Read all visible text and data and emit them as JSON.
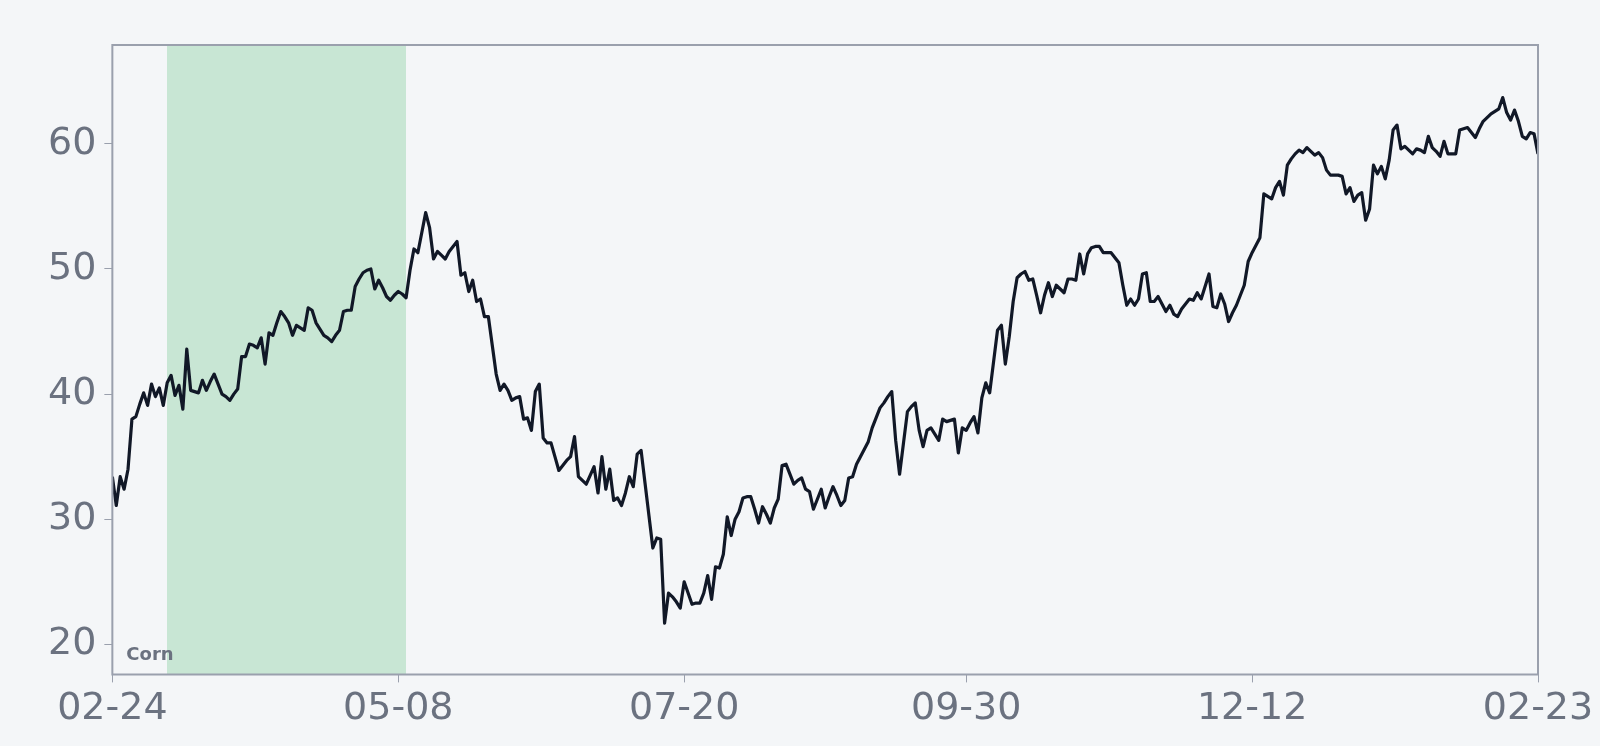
{
  "chart_data": {
    "type": "line",
    "annotations": [
      "Corn"
    ],
    "categories": [
      "02-24",
      null,
      null,
      null,
      null,
      null,
      null,
      null,
      null,
      null,
      null,
      null,
      null,
      null,
      null,
      null,
      null,
      null,
      null,
      null,
      null,
      null,
      null,
      null,
      null,
      null,
      null,
      null,
      null,
      null,
      null,
      null,
      null,
      null,
      null,
      null,
      null,
      null,
      null,
      null,
      null,
      null,
      null,
      null,
      null,
      null,
      null,
      null,
      null,
      null,
      null,
      null,
      null,
      null,
      null,
      null,
      null,
      null,
      null,
      null,
      null,
      null,
      null,
      null,
      null,
      null,
      null,
      null,
      null,
      null,
      null,
      null,
      null,
      "05-08",
      null,
      null,
      null,
      null,
      null,
      null,
      null,
      null,
      null,
      null,
      null,
      null,
      null,
      null,
      null,
      null,
      null,
      null,
      null,
      null,
      null,
      null,
      null,
      null,
      null,
      null,
      null,
      null,
      null,
      null,
      null,
      null,
      null,
      null,
      null,
      null,
      null,
      null,
      null,
      null,
      null,
      null,
      null,
      null,
      null,
      null,
      null,
      null,
      null,
      null,
      null,
      null,
      null,
      null,
      null,
      null,
      null,
      null,
      null,
      null,
      null,
      null,
      null,
      null,
      null,
      null,
      null,
      null,
      null,
      null,
      null,
      null,
      "07-20",
      null,
      null,
      null,
      null,
      null,
      null,
      null,
      null,
      null,
      null,
      null,
      null,
      null,
      null,
      null,
      null,
      null,
      null,
      null,
      null,
      null,
      null,
      null,
      null,
      null,
      null,
      null,
      null,
      null,
      null,
      null,
      null,
      null,
      null,
      null,
      null,
      null,
      null,
      null,
      null,
      null,
      null,
      null,
      null,
      null,
      null,
      null,
      null,
      null,
      null,
      null,
      null,
      null,
      null,
      null,
      null,
      null,
      null,
      null,
      null,
      null,
      null,
      null,
      null,
      null,
      null,
      null,
      null,
      null,
      null,
      null,
      "09-30",
      null,
      null,
      null,
      null,
      null,
      null,
      null,
      null,
      null,
      null,
      null,
      null,
      null,
      null,
      null,
      null,
      null,
      null,
      null,
      null,
      null,
      null,
      null,
      null,
      null,
      null,
      null,
      null,
      null,
      null,
      null,
      null,
      null,
      null,
      null,
      null,
      null,
      null,
      null,
      null,
      null,
      null,
      null,
      null,
      null,
      null,
      null,
      null,
      null,
      null,
      null,
      null,
      null,
      null,
      null,
      null,
      null,
      null,
      null,
      null,
      null,
      null,
      null,
      null,
      null,
      null,
      null,
      null,
      null,
      null,
      null,
      null,
      "12-12",
      null,
      null,
      null,
      null,
      null,
      null,
      null,
      null,
      null,
      null,
      null,
      null,
      null,
      null,
      null,
      null,
      null,
      null,
      null,
      null,
      null,
      null,
      null,
      null,
      null,
      null,
      null,
      null,
      null,
      null,
      null,
      null,
      null,
      null,
      null,
      null,
      null,
      null,
      null,
      null,
      null,
      null,
      null,
      null,
      null,
      null,
      null,
      null,
      null,
      null,
      null,
      null,
      null,
      null,
      null,
      null,
      null,
      null,
      null,
      null,
      null,
      null,
      null,
      null,
      null,
      null,
      null,
      null,
      null,
      null,
      null,
      null,
      "02-23"
    ],
    "series": [
      {
        "color": "#111827",
        "values": [
          33.4,
          31.1,
          33.4,
          32.4,
          34.0,
          38.0,
          38.2,
          39.2,
          40.1,
          39.1,
          40.8,
          39.8,
          40.5,
          39.1,
          40.9,
          41.5,
          39.9,
          40.7,
          38.8,
          43.6,
          40.3,
          40.2,
          40.1,
          41.1,
          40.3,
          41.0,
          41.6,
          40.8,
          40.0,
          39.8,
          39.5,
          40.0,
          40.4,
          43.0,
          43.0,
          44.0,
          43.9,
          43.7,
          44.5,
          42.4,
          44.9,
          44.7,
          45.7,
          46.6,
          46.2,
          45.7,
          44.7,
          45.5,
          45.3,
          45.1,
          46.9,
          46.7,
          45.7,
          45.2,
          44.7,
          44.5,
          44.2,
          44.7,
          45.1,
          46.6,
          46.7,
          46.7,
          48.6,
          49.2,
          49.7,
          49.9,
          50.0,
          48.4,
          49.1,
          48.5,
          47.8,
          47.5,
          47.9,
          48.2,
          48.0,
          47.7,
          49.9,
          51.6,
          51.3,
          52.9,
          54.5,
          53.3,
          50.8,
          51.4,
          51.1,
          50.8,
          51.4,
          51.8,
          52.2,
          49.5,
          49.7,
          48.2,
          49.1,
          47.4,
          47.6,
          46.2,
          46.2,
          43.9,
          41.6,
          40.3,
          40.8,
          40.3,
          39.5,
          39.7,
          39.8,
          38.0,
          38.1,
          37.1,
          40.2,
          40.8,
          36.5,
          36.1,
          36.1,
          35.0,
          33.9,
          34.3,
          34.7,
          35.0,
          36.6,
          33.4,
          33.1,
          32.8,
          33.5,
          34.2,
          32.1,
          35.0,
          32.4,
          34.0,
          31.5,
          31.7,
          31.1,
          32.1,
          33.4,
          32.6,
          35.2,
          35.5,
          32.9,
          30.3,
          27.7,
          28.5,
          28.4,
          21.7,
          24.1,
          23.8,
          23.4,
          22.9,
          25.0,
          24.1,
          23.2,
          23.3,
          23.3,
          24.1,
          25.5,
          23.6,
          26.2,
          26.1,
          27.2,
          30.2,
          28.7,
          30.0,
          30.6,
          31.7,
          31.8,
          31.8,
          30.8,
          29.7,
          31.0,
          30.4,
          29.7,
          30.9,
          31.6,
          34.3,
          34.4,
          33.6,
          32.8,
          33.1,
          33.3,
          32.4,
          32.2,
          30.8,
          31.6,
          32.4,
          30.9,
          31.8,
          32.6,
          31.9,
          31.1,
          31.5,
          33.3,
          33.4,
          34.4,
          35.0,
          35.6,
          36.2,
          37.3,
          38.1,
          38.9,
          39.3,
          39.8,
          40.2,
          36.3,
          33.6,
          36.1,
          38.6,
          39.0,
          39.3,
          37.1,
          35.8,
          37.1,
          37.3,
          36.8,
          36.3,
          38.0,
          37.8,
          37.9,
          38.0,
          35.3,
          37.3,
          37.1,
          37.7,
          38.2,
          36.9,
          39.7,
          40.9,
          40.1,
          42.6,
          45.1,
          45.5,
          42.4,
          44.6,
          47.4,
          49.3,
          49.6,
          49.8,
          49.1,
          49.2,
          47.9,
          46.5,
          47.9,
          48.9,
          47.8,
          48.7,
          48.4,
          48.1,
          49.2,
          49.2,
          49.1,
          51.2,
          49.6,
          51.2,
          51.7,
          51.8,
          51.8,
          51.3,
          51.3,
          51.3,
          50.9,
          50.5,
          48.7,
          47.1,
          47.6,
          47.1,
          47.6,
          49.6,
          49.7,
          47.4,
          47.4,
          47.8,
          47.2,
          46.6,
          47.1,
          46.4,
          46.2,
          46.8,
          47.2,
          47.6,
          47.5,
          48.1,
          47.6,
          48.6,
          49.6,
          47.0,
          46.9,
          48.0,
          47.2,
          45.8,
          46.5,
          47.1,
          47.9,
          48.7,
          50.6,
          51.3,
          51.9,
          52.5,
          56.0,
          55.8,
          55.6,
          56.5,
          57.0,
          55.9,
          58.3,
          58.8,
          59.2,
          59.5,
          59.3,
          59.7,
          59.4,
          59.1,
          59.3,
          58.9,
          57.9,
          57.5,
          57.5,
          57.5,
          57.4,
          56.0,
          56.5,
          55.4,
          55.9,
          56.1,
          53.9,
          54.8,
          58.3,
          57.6,
          58.2,
          57.2,
          58.7,
          61.1,
          61.5,
          59.6,
          59.8,
          59.5,
          59.2,
          59.6,
          59.5,
          59.3,
          60.6,
          59.7,
          59.4,
          59.0,
          60.2,
          59.2,
          59.2,
          59.2,
          61.1,
          61.2,
          61.3,
          60.9,
          60.5,
          61.2,
          61.8,
          62.1,
          62.4,
          62.6,
          62.8,
          63.7,
          62.5,
          61.9,
          62.7,
          61.8,
          60.6,
          60.4,
          60.9,
          60.8,
          59.2
        ]
      }
    ],
    "ylim": [
      17.6,
      67.9
    ],
    "yticks": [
      20,
      30,
      40,
      50,
      60
    ],
    "grid": false,
    "marker": "none",
    "line_style": "solid",
    "legend": false
  }
}
